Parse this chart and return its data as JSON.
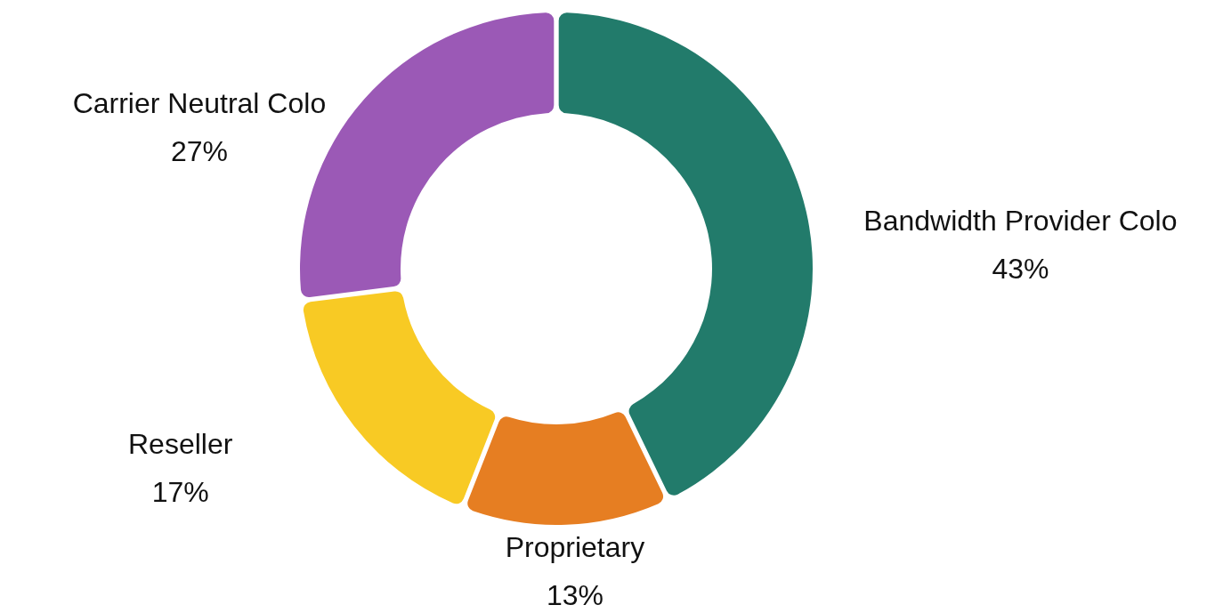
{
  "chart_data": {
    "type": "donut",
    "categories": [
      "Bandwidth Provider Colo",
      "Proprietary",
      "Reseller",
      "Carrier Neutral Colo"
    ],
    "values": [
      43,
      13,
      17,
      27
    ],
    "colors": [
      "#227b6b",
      "#e67e22",
      "#f8ca24",
      "#9b59b6"
    ],
    "value_labels": [
      "43%",
      "13%",
      "17%",
      "27%"
    ]
  }
}
